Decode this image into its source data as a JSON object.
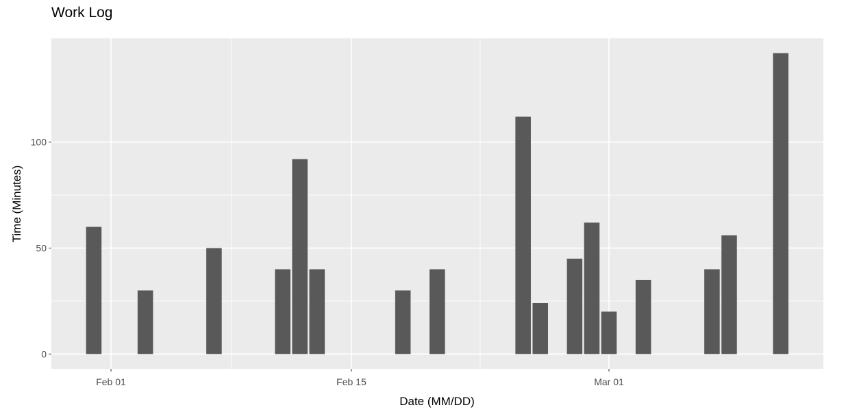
{
  "chart_data": {
    "type": "bar",
    "title": "Work Log",
    "xlabel": "Date (MM/DD)",
    "ylabel": "Time (Minutes)",
    "x_ticks": [
      {
        "date": "2024-02-01",
        "label": "Feb 01"
      },
      {
        "date": "2024-02-15",
        "label": "Feb 15"
      },
      {
        "date": "2024-03-01",
        "label": "Mar 01"
      }
    ],
    "y_ticks": [
      0,
      50,
      100
    ],
    "xlim": [
      "2023-01-29",
      "2024-03-14"
    ],
    "ylim": [
      -7,
      149
    ],
    "grid": true,
    "bar_color": "#595959",
    "panel_color": "#ebebeb",
    "grid_color": "#ffffff",
    "x": [
      "2024-01-31",
      "2024-02-03",
      "2024-02-07",
      "2024-02-11",
      "2024-02-12",
      "2024-02-13",
      "2024-02-18",
      "2024-02-20",
      "2024-02-25",
      "2024-02-26",
      "2024-02-28",
      "2024-02-29",
      "2024-03-01",
      "2024-03-03",
      "2024-03-07",
      "2024-03-08",
      "2024-03-11"
    ],
    "values": [
      60,
      30,
      50,
      40,
      92,
      40,
      30,
      40,
      112,
      24,
      45,
      62,
      20,
      35,
      40,
      56,
      142
    ]
  }
}
